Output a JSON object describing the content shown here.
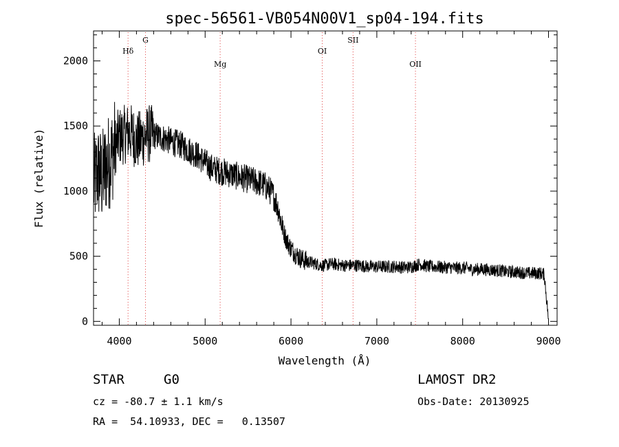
{
  "chart_data": {
    "type": "line",
    "title": "spec-56561-VB054N00V1_sp04-194.fits",
    "xlabel": "Wavelength (Å)",
    "ylabel": "Flux (relative)",
    "xlim": [
      3700,
      9100
    ],
    "ylim": [
      -30,
      2230
    ],
    "x_ticks": [
      4000,
      5000,
      6000,
      7000,
      8000,
      9000
    ],
    "y_ticks": [
      0,
      500,
      1000,
      1500,
      2000
    ],
    "spectral_lines": [
      {
        "label": "Hδ",
        "wavelength": 4102
      },
      {
        "label": "G",
        "wavelength": 4305
      },
      {
        "label": "Mg",
        "wavelength": 5175
      },
      {
        "label": "OI",
        "wavelength": 6364
      },
      {
        "label": "SII",
        "wavelength": 6723
      },
      {
        "label": "OII",
        "wavelength": 7450
      }
    ],
    "series": [
      {
        "x": [
          3700,
          3750,
          3800,
          3850,
          3900,
          3950,
          4000,
          4050,
          4100,
          4150,
          4200,
          4250,
          4300,
          4350,
          4400,
          4450,
          4500,
          4550,
          4600,
          4650,
          4700,
          4750,
          4800,
          4850,
          4900,
          4950,
          5000,
          5050,
          5100,
          5150,
          5200,
          5250,
          5300,
          5350,
          5400,
          5450,
          5500,
          5550,
          5600,
          5650,
          5700,
          5750,
          5800,
          5850,
          5900,
          5950,
          6000,
          6050,
          6100,
          6150,
          6200,
          6250,
          6300,
          6350,
          6400,
          6450,
          6500,
          6550,
          6600,
          6650,
          6700,
          6750,
          6800,
          6850,
          6900,
          6950,
          7000,
          7050,
          7100,
          7150,
          7200,
          7250,
          7300,
          7350,
          7400,
          7450,
          7500,
          7550,
          7600,
          7650,
          7700,
          7750,
          7800,
          7850,
          7900,
          7950,
          8000,
          8050,
          8100,
          8150,
          8200,
          8250,
          8300,
          8350,
          8400,
          8450,
          8500,
          8550,
          8600,
          8650,
          8700,
          8750,
          8800,
          8850,
          8900,
          8950,
          9000
        ],
        "values": [
          1050,
          1150,
          1100,
          1200,
          1250,
          1350,
          1420,
          1430,
          1450,
          1440,
          1380,
          1400,
          1420,
          1440,
          1430,
          1420,
          1410,
          1400,
          1380,
          1370,
          1360,
          1340,
          1320,
          1300,
          1280,
          1250,
          1220,
          1190,
          1170,
          1160,
          1150,
          1140,
          1130,
          1120,
          1110,
          1100,
          1090,
          1080,
          1070,
          1060,
          1040,
          1010,
          960,
          870,
          720,
          620,
          560,
          520,
          490,
          470,
          460,
          450,
          440,
          430,
          430,
          440,
          440,
          435,
          430,
          430,
          430,
          430,
          430,
          425,
          420,
          420,
          420,
          420,
          420,
          420,
          420,
          420,
          415,
          415,
          420,
          430,
          440,
          430,
          420,
          420,
          420,
          415,
          415,
          415,
          410,
          410,
          410,
          410,
          400,
          400,
          400,
          400,
          395,
          395,
          390,
          390,
          380,
          380,
          380,
          375,
          375,
          370,
          370,
          370,
          370,
          360,
          20
        ]
      }
    ]
  },
  "info": {
    "class": "STAR",
    "subclass": "G0",
    "survey": "LAMOST DR2",
    "cz": "cz = -80.7 ± 1.1 km/s",
    "obs_date": "Obs-Date: 20130925",
    "coords": "RA =  54.10933, DEC =   0.13507"
  }
}
